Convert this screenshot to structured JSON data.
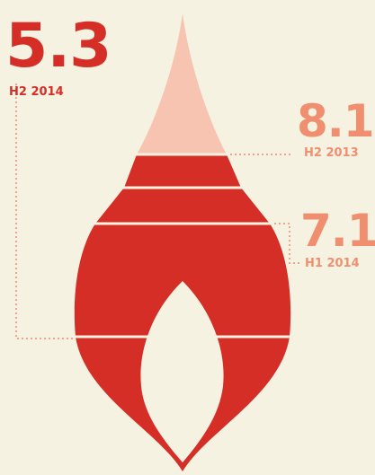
{
  "labels": [
    {
      "value": "5.3",
      "period": "H2 2014"
    },
    {
      "value": "8.1",
      "period": "H2 2013"
    },
    {
      "value": "7.1",
      "period": "H1 2014"
    }
  ]
}
